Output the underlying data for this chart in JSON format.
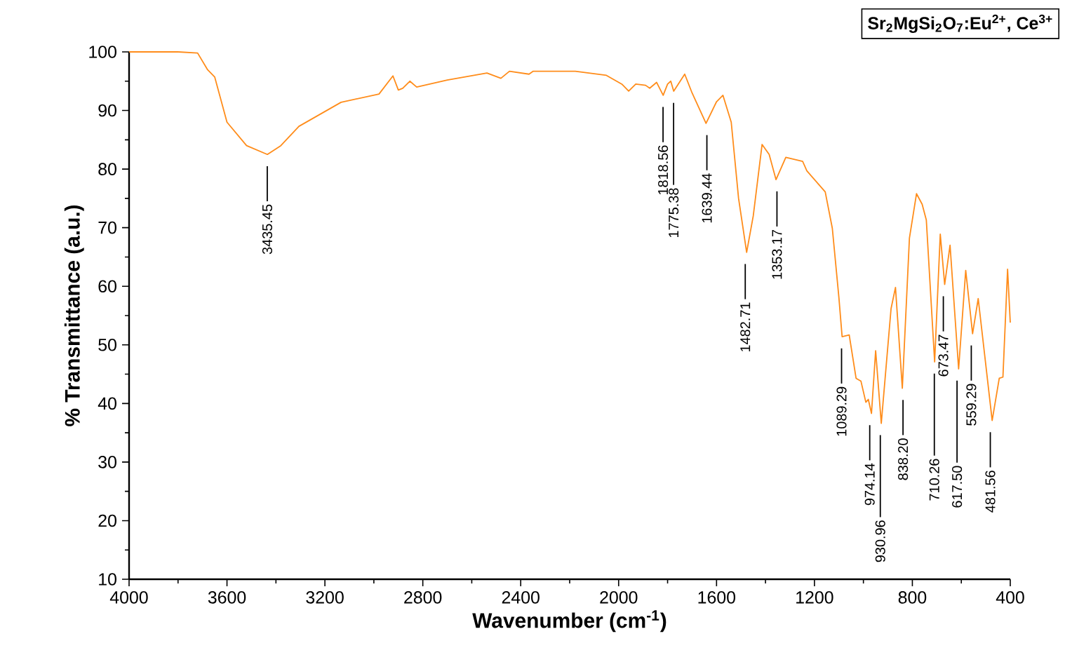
{
  "chart_data": {
    "type": "line",
    "title": "Sr$_{2}$MgSi$_{2}$O$_{7}$:Eu$^{2+}$, Ce$^{3+}$",
    "xlabel": "Wavenumber (cm$^{-1}$)",
    "ylabel": "% Transmittance (a.u.)",
    "x": [
      4000,
      3800,
      3720,
      3680,
      3650,
      3600,
      3520,
      3435,
      3380,
      3306,
      3134,
      2979,
      2922,
      2900,
      2882,
      2853,
      2825,
      2700,
      2538,
      2481,
      2446,
      2366,
      2349,
      2177,
      2050,
      1987,
      1959,
      1930,
      1890,
      1873,
      1845,
      1818,
      1800,
      1787,
      1775,
      1730,
      1700,
      1643,
      1600,
      1574,
      1540,
      1510,
      1477,
      1450,
      1414,
      1385,
      1357,
      1317,
      1248,
      1231,
      1156,
      1127,
      1100,
      1087,
      1058,
      1030,
      1010,
      990,
      980,
      967,
      950,
      927,
      887,
      869,
      841,
      812,
      783,
      760,
      743,
      709,
      686,
      668,
      646,
      611,
      582,
      554,
      531,
      474,
      445,
      430,
      411,
      400
    ],
    "series": [
      {
        "color": "#ff8c1a",
        "values": [
          100,
          100,
          99.8,
          97,
          95.7,
          88,
          84,
          82.5,
          84,
          87.3,
          91.4,
          92.8,
          95.9,
          93.5,
          93.8,
          95,
          94,
          95.2,
          96.4,
          95.5,
          96.7,
          96.2,
          96.7,
          96.7,
          96,
          94.5,
          93.3,
          94.5,
          94.3,
          93.8,
          94.8,
          92.6,
          94.5,
          95,
          93.3,
          96.2,
          93,
          87.8,
          91.5,
          92.6,
          88,
          75,
          65.8,
          72,
          84.2,
          82.5,
          78.2,
          82,
          81.3,
          79.7,
          76.1,
          69.9,
          58,
          51.4,
          51.7,
          44.3,
          43.8,
          40.2,
          40.7,
          38.3,
          49,
          36.6,
          56.2,
          59.8,
          42.6,
          68.2,
          75.8,
          74,
          71.3,
          47.1,
          68.9,
          60.3,
          67,
          45.9,
          62.7,
          51.9,
          57.9,
          37.1,
          44.3,
          44.5,
          62.9,
          53.8
        ]
      }
    ],
    "xlim": [
      4000,
      400
    ],
    "xticks": [
      4000,
      3600,
      3200,
      2800,
      2400,
      2000,
      1600,
      1200,
      800,
      400
    ],
    "ylim": [
      10,
      100
    ],
    "yticks": [
      10,
      20,
      30,
      40,
      50,
      60,
      70,
      80,
      90,
      100
    ],
    "marker": "none",
    "annotations": [
      {
        "text": "3435.45",
        "x": 3435.45,
        "y": 82.5
      },
      {
        "text": "1818.56",
        "x": 1818.56,
        "y": 92.6
      },
      {
        "text": "1775.38",
        "x": 1775.38,
        "y": 93.3
      },
      {
        "text": "1639.44",
        "x": 1639.44,
        "y": 87.8
      },
      {
        "text": "1482.71",
        "x": 1482.71,
        "y": 65.8
      },
      {
        "text": "1353.17",
        "x": 1353.17,
        "y": 78.2
      },
      {
        "text": "1089.29",
        "x": 1089.29,
        "y": 51.4
      },
      {
        "text": "974.14",
        "x": 974.14,
        "y": 38.3
      },
      {
        "text": "930.96",
        "x": 930.96,
        "y": 36.6
      },
      {
        "text": "838.20",
        "x": 838.2,
        "y": 42.6
      },
      {
        "text": "710.26",
        "x": 710.26,
        "y": 47.1
      },
      {
        "text": "673.47",
        "x": 673.47,
        "y": 60.3
      },
      {
        "text": "617.50",
        "x": 617.5,
        "y": 45.9
      },
      {
        "text": "559.29",
        "x": 559.29,
        "y": 51.9
      },
      {
        "text": "481.56",
        "x": 481.56,
        "y": 37.1
      }
    ]
  }
}
